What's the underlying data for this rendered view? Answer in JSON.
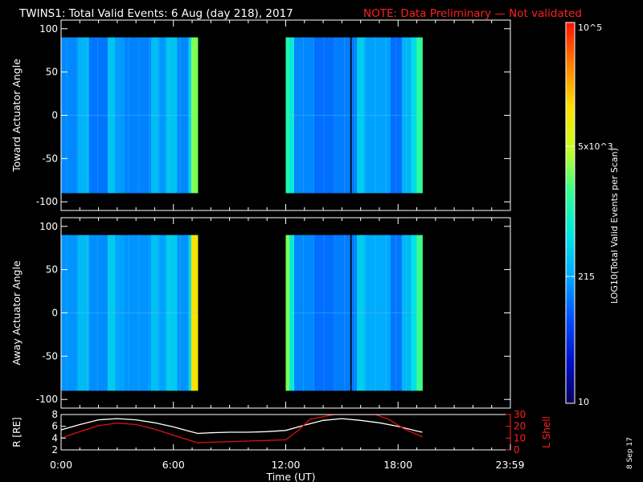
{
  "header": {
    "title": "TWINS1: Total Valid Events:  6 Aug (day 218), 2017",
    "note": "NOTE: Data Preliminary — Not validated"
  },
  "footer": {
    "xlabel": "Time (UT)",
    "date_stamp": "8 Sep 17"
  },
  "colors": {
    "note": "#ff2020",
    "r_line": "#ffffff",
    "lshell_line": "#e01010",
    "lshell_axis": "#ff2020",
    "axes": "#ffffff",
    "background": "#000000"
  },
  "colorbar": {
    "label": "LOG10(Total Valid Events per Scan)",
    "scale": "log",
    "range": [
      10,
      100000
    ],
    "ticks": [
      "10",
      "215",
      "5x10^3",
      "10^5"
    ],
    "tick_values": [
      10,
      215,
      5000,
      100000
    ],
    "gradient": [
      "#08005a",
      "#0010c8",
      "#0050ff",
      "#00a8ff",
      "#00e8e0",
      "#30ff90",
      "#c8ff20",
      "#ffe000",
      "#ff8000",
      "#ff1000"
    ]
  },
  "chart_data": [
    {
      "type": "heatmap",
      "name": "toward",
      "ylabel": "Toward Actuator Angle",
      "xlim": [
        0,
        24
      ],
      "ylim": [
        -110,
        110
      ],
      "yticks": [
        -100,
        -50,
        0,
        50,
        100
      ],
      "data_y_range": [
        -90,
        90
      ],
      "coverage_hours": [
        [
          0,
          7.3
        ],
        [
          12,
          19.3
        ]
      ],
      "columns": [
        {
          "t": [
            0,
            0.9
          ],
          "v": 150
        },
        {
          "t": [
            0.9,
            1.5
          ],
          "v": 260
        },
        {
          "t": [
            1.5,
            2.5
          ],
          "v": 120
        },
        {
          "t": [
            2.5,
            2.9
          ],
          "v": 330
        },
        {
          "t": [
            2.9,
            3.4
          ],
          "v": 180
        },
        {
          "t": [
            3.4,
            4.8
          ],
          "v": 140
        },
        {
          "t": [
            4.8,
            5.2
          ],
          "v": 300
        },
        {
          "t": [
            5.2,
            5.6
          ],
          "v": 180
        },
        {
          "t": [
            5.6,
            6.2
          ],
          "v": 330
        },
        {
          "t": [
            6.2,
            6.8
          ],
          "v": 150
        },
        {
          "t": [
            6.8,
            6.95
          ],
          "v": 380
        },
        {
          "t": [
            6.95,
            7.3
          ],
          "v": 2800
        },
        {
          "t": [
            12,
            12.2
          ],
          "v": 1200
        },
        {
          "t": [
            12.2,
            12.45
          ],
          "v": 700
        },
        {
          "t": [
            12.45,
            13.5
          ],
          "v": 150
        },
        {
          "t": [
            13.5,
            14.6
          ],
          "v": 110
        },
        {
          "t": [
            14.6,
            15.8
          ],
          "v": 130
        },
        {
          "t": [
            15.8,
            16.2
          ],
          "v": 400
        },
        {
          "t": [
            16.2,
            17.6
          ],
          "v": 200
        },
        {
          "t": [
            17.6,
            18.2
          ],
          "v": 110
        },
        {
          "t": [
            18.2,
            18.7
          ],
          "v": 260
        },
        {
          "t": [
            18.7,
            19.0
          ],
          "v": 500
        },
        {
          "t": [
            19.0,
            19.3
          ],
          "v": 1500
        }
      ],
      "gaps": [
        {
          "t": [
            15.45,
            15.52
          ],
          "v": 10
        }
      ]
    },
    {
      "type": "heatmap",
      "name": "away",
      "ylabel": "Away Actuator Angle",
      "xlim": [
        0,
        24
      ],
      "ylim": [
        -110,
        110
      ],
      "yticks": [
        -100,
        -50,
        0,
        50,
        100
      ],
      "data_y_range": [
        -90,
        90
      ],
      "coverage_hours": [
        [
          0,
          7.3
        ],
        [
          12,
          19.3
        ]
      ],
      "columns": [
        {
          "t": [
            0,
            0.9
          ],
          "v": 170
        },
        {
          "t": [
            0.9,
            1.5
          ],
          "v": 290
        },
        {
          "t": [
            1.5,
            2.5
          ],
          "v": 160
        },
        {
          "t": [
            2.5,
            2.9
          ],
          "v": 380
        },
        {
          "t": [
            2.9,
            3.4
          ],
          "v": 200
        },
        {
          "t": [
            3.4,
            4.8
          ],
          "v": 170
        },
        {
          "t": [
            4.8,
            5.2
          ],
          "v": 320
        },
        {
          "t": [
            5.2,
            5.6
          ],
          "v": 200
        },
        {
          "t": [
            5.6,
            6.2
          ],
          "v": 380
        },
        {
          "t": [
            6.2,
            6.8
          ],
          "v": 170
        },
        {
          "t": [
            6.8,
            6.95
          ],
          "v": 450
        },
        {
          "t": [
            6.95,
            7.3
          ],
          "v": 12000
        },
        {
          "t": [
            12,
            12.2
          ],
          "v": 2800
        },
        {
          "t": [
            12.2,
            12.45
          ],
          "v": 700
        },
        {
          "t": [
            12.45,
            13.5
          ],
          "v": 150
        },
        {
          "t": [
            13.5,
            14.6
          ],
          "v": 110
        },
        {
          "t": [
            14.6,
            15.8
          ],
          "v": 130
        },
        {
          "t": [
            15.8,
            16.2
          ],
          "v": 400
        },
        {
          "t": [
            16.2,
            17.6
          ],
          "v": 230
        },
        {
          "t": [
            17.6,
            18.2
          ],
          "v": 120
        },
        {
          "t": [
            18.2,
            18.7
          ],
          "v": 280
        },
        {
          "t": [
            18.7,
            19.0
          ],
          "v": 550
        },
        {
          "t": [
            19.0,
            19.3
          ],
          "v": 1800
        }
      ],
      "gaps": [
        {
          "t": [
            15.45,
            15.52
          ],
          "v": 10
        }
      ]
    },
    {
      "type": "line",
      "name": "orbit",
      "xlabel": "Time (UT)",
      "ylabel": "R [RE]",
      "ylabel_right": "L Shell",
      "xlim": [
        0,
        24
      ],
      "ylim": [
        2,
        8
      ],
      "ylim_right": [
        0,
        30
      ],
      "xticks": [
        0,
        6,
        12,
        18,
        23.98
      ],
      "xtick_labels": [
        "0:00",
        "6:00",
        "12:00",
        "18:00",
        "23:59"
      ],
      "yticks": [
        2,
        4,
        6,
        8
      ],
      "yticks_right": [
        0,
        10,
        20,
        30
      ],
      "series": [
        {
          "axis": "left",
          "x": [
            0,
            1,
            2,
            3,
            4,
            5,
            6,
            6.8,
            7.3,
            8,
            9,
            10,
            11,
            12,
            13,
            14,
            15,
            16,
            17,
            18,
            19,
            19.3
          ],
          "y": [
            5.4,
            6.3,
            7.1,
            7.3,
            7.1,
            6.6,
            5.9,
            5.2,
            4.8,
            4.9,
            5.0,
            5.0,
            5.1,
            5.3,
            6.2,
            7.0,
            7.3,
            7.0,
            6.6,
            6.0,
            5.2,
            5.0
          ]
        },
        {
          "axis": "right",
          "x": [
            0,
            1,
            2,
            3,
            4,
            5,
            6,
            7.3,
            8,
            10,
            12,
            12.7,
            13.3,
            14.6,
            15.4,
            16.8,
            17.5,
            18.3,
            19.3
          ],
          "y": [
            10,
            15.5,
            20.5,
            22.8,
            21.5,
            17.5,
            12.5,
            6,
            6.5,
            7.5,
            8.5,
            17,
            26,
            30,
            30,
            30,
            26,
            18,
            11
          ]
        }
      ]
    }
  ]
}
